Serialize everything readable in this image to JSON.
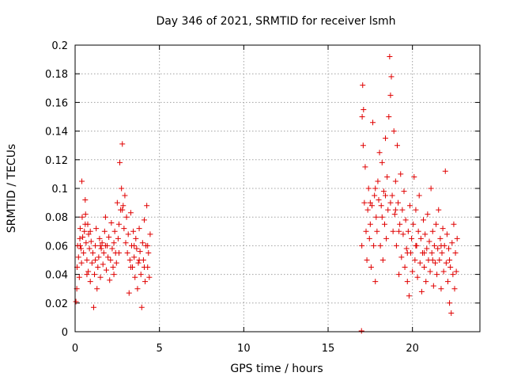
{
  "chart_data": {
    "type": "scatter",
    "title": "Day 346 of 2021, SRMTID for receiver lsmh",
    "xlabel": "GPS time / hours",
    "ylabel": "SRMTID / TECUs",
    "xlim": [
      0,
      24
    ],
    "ylim": [
      0,
      0.2
    ],
    "xticks": [
      0,
      5,
      10,
      15,
      20
    ],
    "xtick_labels": [
      "0",
      "5",
      "10",
      "15",
      "20"
    ],
    "yticks": [
      0,
      0.02,
      0.04,
      0.06,
      0.08,
      0.1,
      0.12,
      0.14,
      0.16,
      0.18,
      0.2
    ],
    "ytick_labels": [
      "0",
      "0.02",
      "0.04",
      "0.06",
      "0.08",
      "0.1",
      "0.12",
      "0.14",
      "0.16",
      "0.18",
      "0.2"
    ],
    "grid": true,
    "marker": "+",
    "color": "#e00000",
    "series": [
      {
        "name": "SRMTID",
        "points": [
          [
            0.05,
            0.021
          ],
          [
            0.1,
            0.03
          ],
          [
            0.12,
            0.045
          ],
          [
            0.15,
            0.06
          ],
          [
            0.2,
            0.052
          ],
          [
            0.25,
            0.038
          ],
          [
            0.28,
            0.065
          ],
          [
            0.3,
            0.072
          ],
          [
            0.35,
            0.058
          ],
          [
            0.38,
            0.048
          ],
          [
            0.4,
            0.105
          ],
          [
            0.42,
            0.08
          ],
          [
            0.45,
            0.066
          ],
          [
            0.5,
            0.055
          ],
          [
            0.55,
            0.07
          ],
          [
            0.6,
            0.092
          ],
          [
            0.62,
            0.082
          ],
          [
            0.65,
            0.062
          ],
          [
            0.7,
            0.05
          ],
          [
            0.75,
            0.075
          ],
          [
            0.78,
            0.042
          ],
          [
            0.8,
            0.068
          ],
          [
            0.85,
            0.058
          ],
          [
            0.9,
            0.035
          ],
          [
            0.95,
            0.063
          ],
          [
            1.0,
            0.048
          ],
          [
            1.05,
            0.055
          ],
          [
            1.1,
            0.017
          ],
          [
            1.15,
            0.04
          ],
          [
            1.2,
            0.06
          ],
          [
            1.25,
            0.072
          ],
          [
            1.3,
            0.03
          ],
          [
            1.35,
            0.045
          ],
          [
            1.4,
            0.052
          ],
          [
            1.45,
            0.065
          ],
          [
            1.5,
            0.038
          ],
          [
            1.55,
            0.058
          ],
          [
            1.6,
            0.062
          ],
          [
            1.65,
            0.047
          ],
          [
            1.7,
            0.055
          ],
          [
            1.75,
            0.07
          ],
          [
            1.8,
            0.08
          ],
          [
            1.85,
            0.043
          ],
          [
            1.9,
            0.06
          ],
          [
            1.95,
            0.052
          ],
          [
            2.0,
            0.066
          ],
          [
            2.05,
            0.036
          ],
          [
            2.1,
            0.05
          ],
          [
            2.15,
            0.076
          ],
          [
            2.2,
            0.058
          ],
          [
            2.25,
            0.045
          ],
          [
            2.3,
            0.062
          ],
          [
            2.35,
            0.07
          ],
          [
            2.4,
            0.055
          ],
          [
            2.45,
            0.048
          ],
          [
            2.5,
            0.09
          ],
          [
            2.55,
            0.065
          ],
          [
            2.6,
            0.075
          ],
          [
            2.65,
            0.118
          ],
          [
            2.7,
            0.085
          ],
          [
            2.75,
            0.1
          ],
          [
            2.8,
            0.131
          ],
          [
            2.85,
            0.088
          ],
          [
            2.9,
            0.072
          ],
          [
            2.95,
            0.095
          ],
          [
            3.0,
            0.062
          ],
          [
            3.05,
            0.08
          ],
          [
            3.1,
            0.055
          ],
          [
            3.15,
            0.068
          ],
          [
            3.2,
            0.027
          ],
          [
            3.25,
            0.05
          ],
          [
            3.3,
            0.083
          ],
          [
            3.35,
            0.06
          ],
          [
            3.4,
            0.045
          ],
          [
            3.45,
            0.07
          ],
          [
            3.5,
            0.052
          ],
          [
            3.55,
            0.038
          ],
          [
            3.6,
            0.065
          ],
          [
            3.65,
            0.058
          ],
          [
            3.7,
            0.03
          ],
          [
            3.75,
            0.048
          ],
          [
            3.8,
            0.072
          ],
          [
            3.85,
            0.056
          ],
          [
            3.9,
            0.04
          ],
          [
            3.95,
            0.017
          ],
          [
            4.0,
            0.062
          ],
          [
            4.05,
            0.05
          ],
          [
            4.1,
            0.078
          ],
          [
            4.15,
            0.035
          ],
          [
            4.2,
            0.06
          ],
          [
            4.25,
            0.088
          ],
          [
            4.3,
            0.045
          ],
          [
            4.35,
            0.055
          ],
          [
            4.4,
            0.038
          ],
          [
            4.45,
            0.068
          ],
          [
            0.3,
            0.06
          ],
          [
            0.7,
            0.04
          ],
          [
            1.2,
            0.05
          ],
          [
            1.8,
            0.06
          ],
          [
            2.3,
            0.04
          ],
          [
            2.8,
            0.085
          ],
          [
            3.3,
            0.045
          ],
          [
            3.8,
            0.05
          ],
          [
            4.3,
            0.06
          ],
          [
            0.6,
            0.075
          ],
          [
            1.5,
            0.06
          ],
          [
            2.6,
            0.055
          ],
          [
            3.5,
            0.06
          ],
          [
            4.1,
            0.045
          ],
          [
            0.9,
            0.07
          ],
          [
            16.98,
            0.0
          ],
          [
            17.0,
            0.06
          ],
          [
            17.02,
            0.15
          ],
          [
            17.05,
            0.172
          ],
          [
            17.08,
            0.13
          ],
          [
            17.1,
            0.155
          ],
          [
            17.15,
            0.09
          ],
          [
            17.2,
            0.115
          ],
          [
            17.25,
            0.07
          ],
          [
            17.3,
            0.05
          ],
          [
            17.35,
            0.085
          ],
          [
            17.4,
            0.1
          ],
          [
            17.45,
            0.065
          ],
          [
            17.5,
            0.075
          ],
          [
            17.55,
            0.045
          ],
          [
            17.6,
            0.088
          ],
          [
            17.65,
            0.146
          ],
          [
            17.7,
            0.06
          ],
          [
            17.75,
            0.095
          ],
          [
            17.8,
            0.035
          ],
          [
            17.85,
            0.08
          ],
          [
            17.9,
            0.07
          ],
          [
            17.95,
            0.105
          ],
          [
            18.0,
            0.092
          ],
          [
            18.05,
            0.125
          ],
          [
            18.1,
            0.06
          ],
          [
            18.15,
            0.088
          ],
          [
            18.2,
            0.118
          ],
          [
            18.25,
            0.05
          ],
          [
            18.3,
            0.098
          ],
          [
            18.35,
            0.075
          ],
          [
            18.4,
            0.135
          ],
          [
            18.45,
            0.065
          ],
          [
            18.5,
            0.108
          ],
          [
            18.55,
            0.085
          ],
          [
            18.6,
            0.15
          ],
          [
            18.65,
            0.192
          ],
          [
            18.7,
            0.165
          ],
          [
            18.75,
            0.178
          ],
          [
            18.8,
            0.095
          ],
          [
            18.85,
            0.07
          ],
          [
            18.9,
            0.14
          ],
          [
            18.95,
            0.082
          ],
          [
            19.0,
            0.105
          ],
          [
            19.05,
            0.06
          ],
          [
            19.1,
            0.13
          ],
          [
            19.15,
            0.09
          ],
          [
            19.2,
            0.04
          ],
          [
            19.25,
            0.075
          ],
          [
            19.3,
            0.11
          ],
          [
            19.35,
            0.052
          ],
          [
            19.4,
            0.085
          ],
          [
            19.45,
            0.068
          ],
          [
            19.5,
            0.098
          ],
          [
            19.55,
            0.045
          ],
          [
            19.6,
            0.078
          ],
          [
            19.65,
            0.058
          ],
          [
            19.7,
            0.035
          ],
          [
            19.75,
            0.07
          ],
          [
            19.8,
            0.025
          ],
          [
            19.85,
            0.088
          ],
          [
            19.9,
            0.055
          ],
          [
            19.95,
            0.065
          ],
          [
            20.0,
            0.042
          ],
          [
            20.05,
            0.075
          ],
          [
            20.1,
            0.108
          ],
          [
            20.15,
            0.05
          ],
          [
            20.2,
            0.085
          ],
          [
            20.25,
            0.06
          ],
          [
            20.3,
            0.038
          ],
          [
            20.35,
            0.07
          ],
          [
            20.4,
            0.095
          ],
          [
            20.45,
            0.048
          ],
          [
            20.5,
            0.065
          ],
          [
            20.55,
            0.028
          ],
          [
            20.6,
            0.055
          ],
          [
            20.65,
            0.078
          ],
          [
            20.7,
            0.045
          ],
          [
            20.75,
            0.068
          ],
          [
            20.8,
            0.035
          ],
          [
            20.85,
            0.058
          ],
          [
            20.9,
            0.082
          ],
          [
            20.95,
            0.05
          ],
          [
            21.0,
            0.063
          ],
          [
            21.05,
            0.042
          ],
          [
            21.1,
            0.1
          ],
          [
            21.15,
            0.055
          ],
          [
            21.2,
            0.07
          ],
          [
            21.25,
            0.032
          ],
          [
            21.3,
            0.06
          ],
          [
            21.35,
            0.048
          ],
          [
            21.4,
            0.075
          ],
          [
            21.45,
            0.04
          ],
          [
            21.5,
            0.058
          ],
          [
            21.55,
            0.085
          ],
          [
            21.6,
            0.05
          ],
          [
            21.65,
            0.065
          ],
          [
            21.7,
            0.03
          ],
          [
            21.75,
            0.055
          ],
          [
            21.8,
            0.072
          ],
          [
            21.85,
            0.042
          ],
          [
            21.9,
            0.06
          ],
          [
            21.95,
            0.112
          ],
          [
            22.0,
            0.048
          ],
          [
            22.05,
            0.068
          ],
          [
            22.1,
            0.035
          ],
          [
            22.15,
            0.058
          ],
          [
            22.2,
            0.02
          ],
          [
            22.25,
            0.045
          ],
          [
            22.3,
            0.013
          ],
          [
            22.35,
            0.062
          ],
          [
            22.4,
            0.04
          ],
          [
            22.45,
            0.075
          ],
          [
            22.5,
            0.03
          ],
          [
            22.55,
            0.055
          ],
          [
            22.6,
            0.042
          ],
          [
            22.65,
            0.065
          ],
          [
            17.5,
            0.09
          ],
          [
            18.2,
            0.08
          ],
          [
            18.7,
            0.09
          ],
          [
            19.2,
            0.07
          ],
          [
            19.7,
            0.055
          ],
          [
            20.2,
            0.06
          ],
          [
            20.7,
            0.055
          ],
          [
            21.2,
            0.05
          ],
          [
            21.7,
            0.06
          ],
          [
            22.2,
            0.05
          ],
          [
            17.8,
            0.1
          ],
          [
            18.4,
            0.095
          ],
          [
            19.0,
            0.085
          ]
        ]
      }
    ]
  }
}
